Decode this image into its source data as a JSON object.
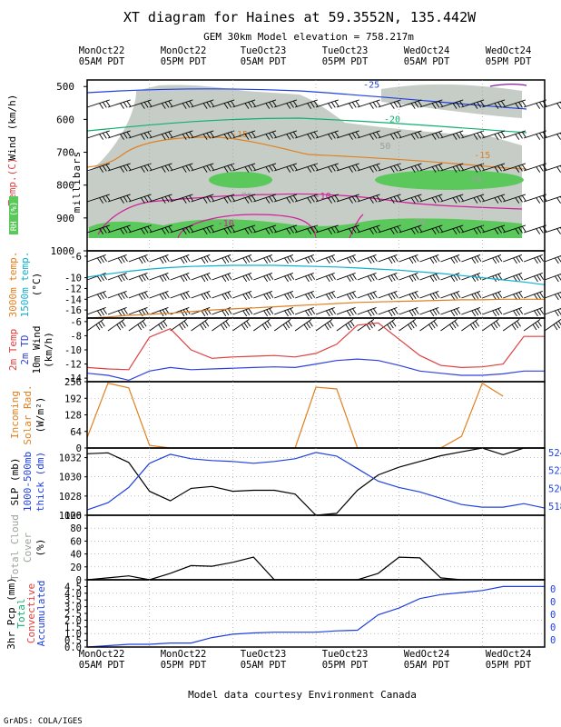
{
  "title": "XT diagram for Haines at 59.3552N, 135.442W",
  "subtitle": "GEM 30km Model elevation = 758.217m",
  "footer": "Model data courtesy Environment Canada",
  "credit": "GrADS: COLA/IGES",
  "time_axis": {
    "top_labels": [
      {
        "day": "MonOct22",
        "hour": "05AM PDT"
      },
      {
        "day": "MonOct22",
        "hour": "05PM PDT"
      },
      {
        "day": "TueOct23",
        "hour": "05AM PDT"
      },
      {
        "day": "TueOct23",
        "hour": "05PM PDT"
      },
      {
        "day": "WedOct24",
        "hour": "05AM PDT"
      },
      {
        "day": "WedOct24",
        "hour": "05PM PDT"
      }
    ],
    "bottom_labels": [
      {
        "day": "MonOct22",
        "hour": "05AM PDT"
      },
      {
        "day": "MonOct22",
        "hour": "05PM PDT"
      },
      {
        "day": "TueOct23",
        "hour": "05AM PDT"
      },
      {
        "day": "TueOct23",
        "hour": "05PM PDT"
      },
      {
        "day": "WedOct24",
        "hour": "05AM PDT"
      },
      {
        "day": "WedOct24",
        "hour": "05PM PDT"
      }
    ]
  },
  "colors": {
    "temp": "#e04040",
    "td": "#3040e0",
    "orange": "#e08020",
    "cyan": "#10b0d0",
    "magenta": "#d0209a",
    "green": "#10b070",
    "blue": "#2040e0",
    "grey": "#9aa39a",
    "rh_grey": "#c0c8c0",
    "rh_green": "#5ac85a",
    "black": "#000000",
    "purple": "#8020a0",
    "axis_blue": "#2040e0"
  },
  "chart_data": [
    {
      "type": "heatmap",
      "panel": "cross-section",
      "ylabel": "millibars",
      "side_labels": {
        "temp": "Temp.(C)",
        "wind": "Wind (km/h)",
        "rh": "RH (%)"
      },
      "y_ticks": [
        "500",
        "600",
        "700",
        "800",
        "900",
        "1000"
      ],
      "ylim": [
        1000,
        480
      ],
      "contour_labels": [
        {
          "text": "-25",
          "color": "blue",
          "t": 41,
          "p": 503
        },
        {
          "text": "-20",
          "color": "green",
          "t": 44,
          "p": 608
        },
        {
          "text": "-15",
          "color": "orange",
          "t": 22,
          "p": 654
        },
        {
          "text": "-15",
          "color": "orange",
          "t": 57,
          "p": 718
        },
        {
          "text": "50",
          "color": "grey",
          "t": 43,
          "p": 690
        },
        {
          "text": "70",
          "color": "grey",
          "t": 56,
          "p": 793
        },
        {
          "text": "70",
          "color": "grey",
          "t": 23,
          "p": 843
        },
        {
          "text": "-10",
          "color": "magenta",
          "t": 34,
          "p": 843
        },
        {
          "text": "-10",
          "color": "magenta",
          "t": 20,
          "p": 925
        },
        {
          "text": "70",
          "color": "grey",
          "t": 48,
          "p": 922
        }
      ]
    },
    {
      "type": "line",
      "panel": "upper-air temps",
      "ylabel_lines": [
        "3000m temp.",
        "1500m temp.",
        "(°C)"
      ],
      "y_ticks": [
        "-16",
        "-14",
        "-12",
        "-10",
        "-6"
      ],
      "ylim": [
        -17.5,
        -5
      ],
      "x": [
        0,
        3,
        6,
        9,
        12,
        15,
        18,
        21,
        24,
        27,
        30,
        33,
        36,
        39,
        42,
        45,
        48,
        51,
        54,
        57,
        60,
        63,
        66
      ],
      "series": [
        {
          "name": "3000m temp.",
          "color": "orange",
          "values": [
            -17.5,
            -17.3,
            -17.0,
            -16.8,
            -16.6,
            -16.3,
            -16.0,
            -15.8,
            -15.6,
            -15.4,
            -15.2,
            -15.0,
            -14.8,
            -14.6,
            -14.5,
            -14.4,
            -14.3,
            -14.2,
            -14.1,
            -14.1,
            -14.0,
            -14.0,
            -14.0
          ]
        },
        {
          "name": "1500m temp.",
          "color": "cyan",
          "values": [
            -9.9,
            -9.3,
            -8.8,
            -8.4,
            -8.1,
            -7.9,
            -7.8,
            -7.7,
            -7.7,
            -7.7,
            -7.8,
            -7.9,
            -8.0,
            -8.2,
            -8.4,
            -8.6,
            -8.9,
            -9.2,
            -9.6,
            -10.0,
            -10.4,
            -10.8,
            -11.3
          ]
        }
      ]
    },
    {
      "type": "line",
      "panel": "surface temp / dewpoint",
      "ylabel_lines": [
        "2m Temp",
        "2m TD",
        "10m Wind",
        "(km/h)"
      ],
      "y_ticks": [
        "-6",
        "-8",
        "-10",
        "-12",
        "-14"
      ],
      "ylim": [
        -14.5,
        -5.5
      ],
      "x": [
        0,
        3,
        6,
        9,
        12,
        15,
        18,
        21,
        24,
        27,
        30,
        33,
        36,
        39,
        42,
        45,
        48,
        51,
        54,
        57,
        60,
        63,
        66
      ],
      "series": [
        {
          "name": "2m Temp",
          "color": "temp",
          "values": [
            -12.5,
            -12.7,
            -12.8,
            -8.2,
            -7.0,
            -10.0,
            -11.2,
            -11.0,
            -10.9,
            -10.8,
            -11.0,
            -10.5,
            -9.2,
            -6.5,
            -6.2,
            -8.5,
            -10.8,
            -12.2,
            -12.5,
            -12.4,
            -12.0,
            -8.1,
            -8.1
          ]
        },
        {
          "name": "2m TD",
          "color": "td",
          "values": [
            -13.3,
            -13.6,
            -14.3,
            -13.0,
            -12.5,
            -12.8,
            -12.7,
            -12.6,
            -12.5,
            -12.4,
            -12.5,
            -12.0,
            -11.5,
            -11.3,
            -11.5,
            -12.2,
            -13.0,
            -13.3,
            -13.6,
            -13.6,
            -13.4,
            -13.0,
            -13.0
          ]
        }
      ]
    },
    {
      "type": "line",
      "panel": "incoming solar radiation",
      "ylabel_lines": [
        "Incoming",
        "Solar Rad.",
        "(W/m²)"
      ],
      "y_ticks": [
        "256",
        "192",
        "128",
        "64",
        "0"
      ],
      "ylim": [
        0,
        256
      ],
      "x": [
        0,
        3,
        6,
        9,
        12,
        15,
        18,
        21,
        24,
        27,
        30,
        33,
        36,
        39,
        42,
        45,
        48,
        51,
        54,
        57,
        60,
        63,
        66
      ],
      "series": [
        {
          "name": "Incoming Solar Rad.",
          "color": "orange",
          "values": [
            40,
            250,
            232,
            10,
            0,
            0,
            0,
            0,
            0,
            0,
            0,
            235,
            228,
            0,
            0,
            0,
            0,
            0,
            45,
            250,
            200,
            null,
            null
          ]
        }
      ]
    },
    {
      "type": "line",
      "panel": "SLP and thickness",
      "ylabel_lines": [
        "SLP (mb)",
        "1000-500mb",
        "thick (dm)"
      ],
      "left_ticks": [
        "1032",
        "1030",
        "1028",
        "1026"
      ],
      "left_ylim": [
        1026,
        1033
      ],
      "right_ticks": [
        "524",
        "522",
        "520",
        "518"
      ],
      "right_ylim": [
        517,
        524.5
      ],
      "x": [
        0,
        3,
        6,
        9,
        12,
        15,
        18,
        21,
        24,
        27,
        30,
        33,
        36,
        39,
        42,
        45,
        48,
        51,
        54,
        57,
        60,
        63,
        66
      ],
      "series": [
        {
          "name": "SLP",
          "color": "black",
          "axis": "left",
          "values": [
            1032.4,
            1032.5,
            1031.5,
            1028.5,
            1027.5,
            1028.8,
            1029.0,
            1028.5,
            1028.6,
            1028.6,
            1028.2,
            1026.0,
            1026.2,
            1028.6,
            1030.2,
            1031.0,
            1031.6,
            1032.2,
            1032.6,
            1033.0,
            1032.3,
            1033.0,
            1033.0
          ]
        },
        {
          "name": "1000-500mb thick",
          "color": "axis_blue",
          "axis": "right",
          "values": [
            517.6,
            518.4,
            520.1,
            522.8,
            523.8,
            523.3,
            523.1,
            523.0,
            522.8,
            523.0,
            523.3,
            524.0,
            523.6,
            522.2,
            520.8,
            520.1,
            519.6,
            518.9,
            518.2,
            517.9,
            517.9,
            518.3,
            517.8
          ]
        }
      ]
    },
    {
      "type": "line",
      "panel": "total cloud cover",
      "ylabel_lines": [
        "Total Cloud",
        "Cover",
        "(%)"
      ],
      "y_ticks": [
        "100",
        "80",
        "60",
        "40",
        "20",
        "0"
      ],
      "ylim": [
        0,
        100
      ],
      "x": [
        0,
        3,
        6,
        9,
        12,
        15,
        18,
        21,
        24,
        27,
        30,
        33,
        36,
        39,
        42,
        45,
        48,
        51,
        54,
        57,
        60,
        63,
        66
      ],
      "series": [
        {
          "name": "Total Cloud Cover",
          "color": "black",
          "values": [
            0,
            3,
            6,
            0,
            10,
            22,
            21,
            27,
            35,
            0,
            0,
            0,
            0,
            0,
            10,
            35,
            34,
            3,
            0,
            0,
            0,
            0,
            0
          ]
        }
      ]
    },
    {
      "type": "line",
      "panel": "precipitation",
      "ylabel_lines": [
        "3hr Pcp (mm)",
        "Total",
        "Convective",
        "Accumulated"
      ],
      "left_ticks": [
        "4.5",
        "4.0",
        "3.5",
        "3.0",
        "2.5",
        "2.0",
        "1.5",
        "1.0",
        "0.5",
        "0.0"
      ],
      "left_ylim": [
        0,
        5
      ],
      "right_ticks": [
        "0",
        "0",
        "0",
        "0",
        "0"
      ],
      "x": [
        0,
        3,
        6,
        9,
        12,
        15,
        18,
        21,
        24,
        27,
        30,
        33,
        36,
        39,
        42,
        45,
        48,
        51,
        54,
        57,
        60,
        63,
        66
      ],
      "series": [
        {
          "name": "Accumulated",
          "color": "axis_blue",
          "values": [
            0,
            0.1,
            0.2,
            0.2,
            0.3,
            0.3,
            0.7,
            0.95,
            1.05,
            1.1,
            1.1,
            1.1,
            1.2,
            1.25,
            2.4,
            2.9,
            3.6,
            3.9,
            4.05,
            4.2,
            4.5,
            4.5,
            4.5
          ]
        }
      ]
    }
  ]
}
